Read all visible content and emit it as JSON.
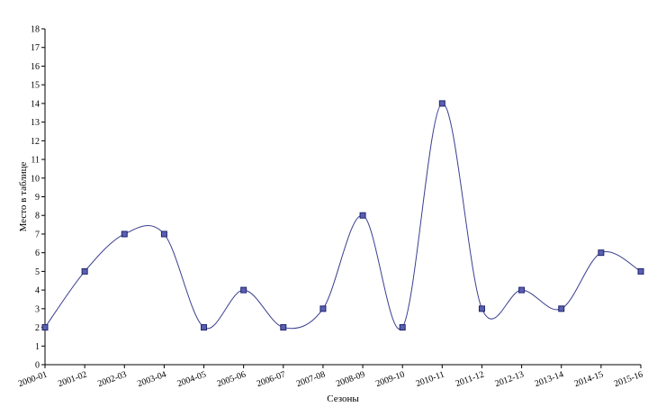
{
  "chart_data": {
    "type": "line",
    "title": "",
    "xlabel": "Сезоны",
    "ylabel": "Место в таблице",
    "categories": [
      "2000-01",
      "2001-02",
      "2002-03",
      "2003-04",
      "2004-05",
      "2005-06",
      "2006-07",
      "2007-08",
      "2008-09",
      "2009-10",
      "2010-11",
      "2011-12",
      "2012-13",
      "2013-14",
      "2014-15",
      "2015-16"
    ],
    "series": [
      {
        "values": [
          2,
          5,
          7,
          7,
          2,
          4,
          2,
          3,
          8,
          2,
          14,
          3,
          4,
          3,
          6,
          5
        ]
      }
    ],
    "ylim": [
      0,
      18
    ],
    "yticks": [
      0,
      1,
      2,
      3,
      4,
      5,
      6,
      7,
      8,
      9,
      10,
      11,
      12,
      13,
      14,
      15,
      16,
      17,
      18
    ],
    "smooth": true,
    "marker": "square",
    "grid": false,
    "legend": "none",
    "colors": {
      "line": "#3a3f8f",
      "marker_fill": "#5a5fb0",
      "marker_stroke": "#1f2470",
      "axis": "#000000"
    }
  }
}
